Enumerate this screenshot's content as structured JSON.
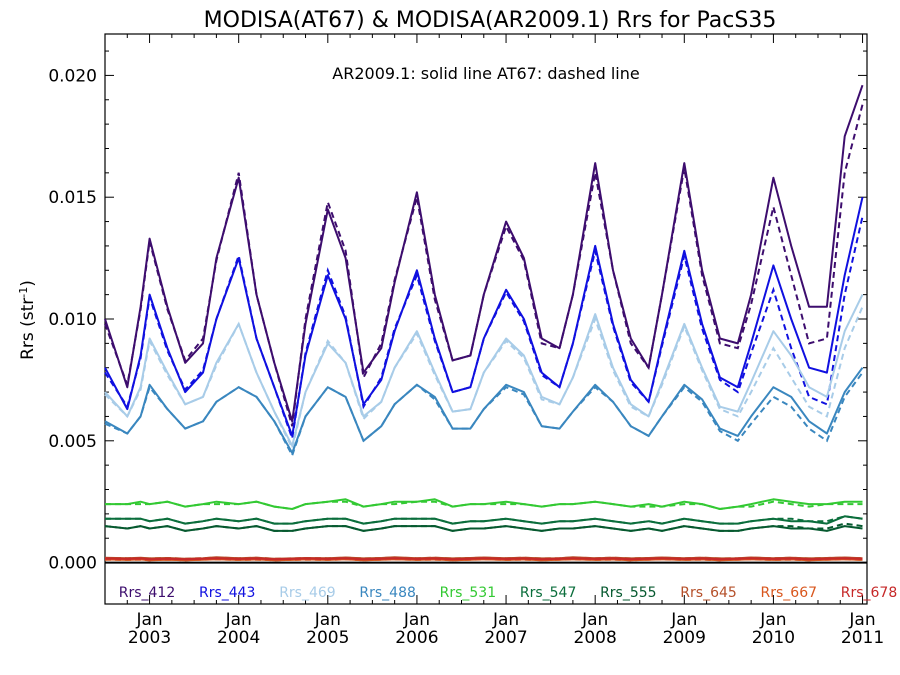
{
  "chart_data": {
    "type": "line",
    "title": "MODISA(AT67) & MODISA(AR2009.1)  Rrs for PacS35",
    "ylabel": "Rrs (str",
    "ylabel_sup": "-1",
    "ylabel_close": ")",
    "annotation": "AR2009.1: solid line   AT67: dashed line",
    "ylim": [
      -0.0017,
      0.0217
    ],
    "xlim": [
      2002.5,
      2011.05
    ],
    "yticks": [
      {
        "value": 0.0,
        "label": "0.000"
      },
      {
        "value": 0.005,
        "label": "0.005"
      },
      {
        "value": 0.01,
        "label": "0.010"
      },
      {
        "value": 0.015,
        "label": "0.015"
      },
      {
        "value": 0.02,
        "label": "0.020"
      }
    ],
    "xticks": [
      {
        "value": 2003,
        "month": "Jan",
        "year": "2003"
      },
      {
        "value": 2004,
        "month": "Jan",
        "year": "2004"
      },
      {
        "value": 2005,
        "month": "Jan",
        "year": "2005"
      },
      {
        "value": 2006,
        "month": "Jan",
        "year": "2006"
      },
      {
        "value": 2007,
        "month": "Jan",
        "year": "2007"
      },
      {
        "value": 2008,
        "month": "Jan",
        "year": "2008"
      },
      {
        "value": 2009,
        "month": "Jan",
        "year": "2009"
      },
      {
        "value": 2010,
        "month": "Jan",
        "year": "2010"
      },
      {
        "value": 2011,
        "month": "Jan",
        "year": "2011"
      }
    ],
    "line_styles": {
      "AR2009.1": "solid",
      "AT67": "dashed"
    },
    "legend_position": "bottom",
    "x": [
      2002.5,
      2002.75,
      2002.9,
      2003.0,
      2003.2,
      2003.4,
      2003.6,
      2003.75,
      2004.0,
      2004.2,
      2004.4,
      2004.6,
      2004.75,
      2005.0,
      2005.2,
      2005.4,
      2005.6,
      2005.75,
      2006.0,
      2006.2,
      2006.4,
      2006.6,
      2006.75,
      2007.0,
      2007.2,
      2007.4,
      2007.6,
      2007.75,
      2008.0,
      2008.2,
      2008.4,
      2008.6,
      2008.75,
      2009.0,
      2009.2,
      2009.4,
      2009.6,
      2009.75,
      2010.0,
      2010.2,
      2010.4,
      2010.6,
      2010.8,
      2011.0
    ],
    "series": [
      {
        "name": "Rrs_412",
        "color": "#3d0d6e",
        "solid": [
          0.01,
          0.0072,
          0.0105,
          0.0133,
          0.0105,
          0.0082,
          0.009,
          0.0125,
          0.0158,
          0.011,
          0.0082,
          0.0058,
          0.0098,
          0.0145,
          0.0125,
          0.0078,
          0.0088,
          0.0115,
          0.0152,
          0.011,
          0.0083,
          0.0085,
          0.011,
          0.014,
          0.0125,
          0.0092,
          0.0088,
          0.011,
          0.0164,
          0.012,
          0.0092,
          0.008,
          0.011,
          0.0164,
          0.012,
          0.0092,
          0.009,
          0.011,
          0.0158,
          0.013,
          0.0105,
          0.0105,
          0.0175,
          0.0196
        ],
        "dashed": [
          0.0098,
          0.0073,
          0.0104,
          0.0132,
          0.0104,
          0.0083,
          0.0092,
          0.0124,
          0.016,
          0.011,
          0.0082,
          0.0056,
          0.01,
          0.0148,
          0.0128,
          0.0076,
          0.009,
          0.0116,
          0.015,
          0.0108,
          0.0083,
          0.0085,
          0.011,
          0.0138,
          0.0124,
          0.009,
          0.0088,
          0.011,
          0.016,
          0.012,
          0.009,
          0.008,
          0.011,
          0.0162,
          0.0118,
          0.009,
          0.0088,
          0.0106,
          0.0146,
          0.0118,
          0.009,
          0.0092,
          0.016,
          0.0188
        ]
      },
      {
        "name": "Rrs_443",
        "color": "#1010e0",
        "solid": [
          0.008,
          0.0063,
          0.0085,
          0.011,
          0.0088,
          0.007,
          0.0078,
          0.01,
          0.0125,
          0.0092,
          0.0072,
          0.0052,
          0.0085,
          0.0118,
          0.01,
          0.0065,
          0.0075,
          0.0095,
          0.012,
          0.0092,
          0.007,
          0.0072,
          0.0092,
          0.0112,
          0.01,
          0.0078,
          0.0072,
          0.009,
          0.013,
          0.0098,
          0.0075,
          0.0066,
          0.009,
          0.0128,
          0.0098,
          0.0076,
          0.0072,
          0.009,
          0.0122,
          0.01,
          0.008,
          0.0078,
          0.0118,
          0.015
        ],
        "dashed": [
          0.0078,
          0.0064,
          0.0084,
          0.0109,
          0.0087,
          0.0071,
          0.0079,
          0.01,
          0.0126,
          0.0092,
          0.0072,
          0.0051,
          0.0086,
          0.012,
          0.0101,
          0.0064,
          0.0076,
          0.0096,
          0.0118,
          0.0091,
          0.007,
          0.0072,
          0.0092,
          0.0111,
          0.0099,
          0.0077,
          0.0072,
          0.009,
          0.0128,
          0.0097,
          0.0074,
          0.0066,
          0.0089,
          0.0126,
          0.0096,
          0.0075,
          0.007,
          0.0086,
          0.0112,
          0.0088,
          0.0068,
          0.0065,
          0.011,
          0.0142
        ]
      },
      {
        "name": "Rrs_469",
        "color": "#a8cce8",
        "solid": [
          0.007,
          0.006,
          0.0072,
          0.0092,
          0.0078,
          0.0065,
          0.0068,
          0.0082,
          0.0098,
          0.0078,
          0.0062,
          0.0048,
          0.007,
          0.009,
          0.0082,
          0.006,
          0.0066,
          0.008,
          0.0095,
          0.0078,
          0.0062,
          0.0063,
          0.0078,
          0.0092,
          0.0085,
          0.0068,
          0.0065,
          0.0076,
          0.0102,
          0.008,
          0.0065,
          0.006,
          0.0074,
          0.0098,
          0.008,
          0.0064,
          0.0062,
          0.0074,
          0.0095,
          0.0085,
          0.0072,
          0.0068,
          0.0095,
          0.011
        ],
        "dashed": [
          0.0069,
          0.006,
          0.0071,
          0.0091,
          0.0077,
          0.0065,
          0.0068,
          0.0081,
          0.0098,
          0.0078,
          0.0062,
          0.0047,
          0.007,
          0.0091,
          0.0082,
          0.0059,
          0.0066,
          0.008,
          0.0094,
          0.0077,
          0.0062,
          0.0063,
          0.0078,
          0.0091,
          0.0084,
          0.0067,
          0.0065,
          0.0076,
          0.01,
          0.0079,
          0.0064,
          0.006,
          0.0073,
          0.0097,
          0.0079,
          0.0063,
          0.006,
          0.007,
          0.0088,
          0.0076,
          0.0064,
          0.006,
          0.0088,
          0.0105
        ]
      },
      {
        "name": "Rrs_488",
        "color": "#3a87bf",
        "solid": [
          0.0058,
          0.0053,
          0.006,
          0.0073,
          0.0063,
          0.0055,
          0.0058,
          0.0066,
          0.0072,
          0.0068,
          0.0058,
          0.0045,
          0.006,
          0.0072,
          0.0068,
          0.005,
          0.0056,
          0.0065,
          0.0073,
          0.0068,
          0.0055,
          0.0055,
          0.0063,
          0.0073,
          0.007,
          0.0056,
          0.0055,
          0.0062,
          0.0073,
          0.0066,
          0.0056,
          0.0052,
          0.006,
          0.0073,
          0.0067,
          0.0055,
          0.0052,
          0.006,
          0.0072,
          0.0068,
          0.0058,
          0.0053,
          0.007,
          0.008
        ],
        "dashed": [
          0.0057,
          0.0053,
          0.006,
          0.0072,
          0.0063,
          0.0055,
          0.0058,
          0.0066,
          0.0072,
          0.0068,
          0.0058,
          0.0044,
          0.006,
          0.0072,
          0.0068,
          0.005,
          0.0056,
          0.0065,
          0.0073,
          0.0067,
          0.0055,
          0.0055,
          0.0063,
          0.0072,
          0.0069,
          0.0056,
          0.0055,
          0.0062,
          0.0072,
          0.0066,
          0.0056,
          0.0052,
          0.006,
          0.0072,
          0.0066,
          0.0054,
          0.005,
          0.0057,
          0.0068,
          0.0064,
          0.0055,
          0.005,
          0.0068,
          0.0078
        ]
      },
      {
        "name": "Rrs_531",
        "color": "#33c933",
        "solid": [
          0.0024,
          0.0024,
          0.0025,
          0.0024,
          0.0025,
          0.0023,
          0.0024,
          0.0025,
          0.0024,
          0.0025,
          0.0023,
          0.0022,
          0.0024,
          0.0025,
          0.0026,
          0.0023,
          0.0024,
          0.0025,
          0.0025,
          0.0026,
          0.0023,
          0.0024,
          0.0024,
          0.0025,
          0.0024,
          0.0023,
          0.0024,
          0.0024,
          0.0025,
          0.0024,
          0.0023,
          0.0024,
          0.0023,
          0.0025,
          0.0024,
          0.0022,
          0.0023,
          0.0024,
          0.0026,
          0.0025,
          0.0024,
          0.0024,
          0.0025,
          0.0025
        ],
        "dashed": [
          0.0024,
          0.0024,
          0.0024,
          0.0024,
          0.0025,
          0.0023,
          0.0024,
          0.0024,
          0.0024,
          0.0025,
          0.0023,
          0.0022,
          0.0024,
          0.0025,
          0.0025,
          0.0023,
          0.0024,
          0.0024,
          0.0025,
          0.0025,
          0.0023,
          0.0024,
          0.0024,
          0.0024,
          0.0024,
          0.0023,
          0.0024,
          0.0024,
          0.0025,
          0.0024,
          0.0023,
          0.0023,
          0.0023,
          0.0024,
          0.0024,
          0.0022,
          0.0023,
          0.0023,
          0.0025,
          0.0024,
          0.0023,
          0.0024,
          0.0024,
          0.0024
        ]
      },
      {
        "name": "Rrs_547",
        "color": "#0b6e3c",
        "solid": [
          0.0018,
          0.0018,
          0.0018,
          0.0017,
          0.0018,
          0.0016,
          0.0017,
          0.0018,
          0.0017,
          0.0018,
          0.0016,
          0.0016,
          0.0017,
          0.0018,
          0.0018,
          0.0016,
          0.0017,
          0.0018,
          0.0018,
          0.0018,
          0.0016,
          0.0017,
          0.0017,
          0.0018,
          0.0017,
          0.0016,
          0.0017,
          0.0017,
          0.0018,
          0.0017,
          0.0016,
          0.0017,
          0.0016,
          0.0018,
          0.0017,
          0.0016,
          0.0016,
          0.0017,
          0.0018,
          0.0017,
          0.0017,
          0.0016,
          0.0019,
          0.0018
        ],
        "dashed": [
          0.0018,
          0.0018,
          0.0018,
          0.0017,
          0.0018,
          0.0016,
          0.0017,
          0.0018,
          0.0017,
          0.0018,
          0.0016,
          0.0016,
          0.0017,
          0.0018,
          0.0018,
          0.0016,
          0.0017,
          0.0018,
          0.0018,
          0.0018,
          0.0016,
          0.0017,
          0.0017,
          0.0018,
          0.0017,
          0.0016,
          0.0017,
          0.0017,
          0.0018,
          0.0017,
          0.0016,
          0.0017,
          0.0016,
          0.0018,
          0.0017,
          0.0016,
          0.0016,
          0.0017,
          0.0018,
          0.0018,
          0.0017,
          0.0017,
          0.0019,
          0.0018
        ]
      },
      {
        "name": "Rrs_555",
        "color": "#06592f",
        "solid": [
          0.0015,
          0.0014,
          0.0015,
          0.0014,
          0.0015,
          0.0013,
          0.0014,
          0.0015,
          0.0014,
          0.0015,
          0.0013,
          0.0013,
          0.0014,
          0.0015,
          0.0015,
          0.0013,
          0.0014,
          0.0015,
          0.0015,
          0.0015,
          0.0013,
          0.0014,
          0.0014,
          0.0015,
          0.0014,
          0.0013,
          0.0014,
          0.0014,
          0.0015,
          0.0014,
          0.0013,
          0.0014,
          0.0013,
          0.0015,
          0.0014,
          0.0013,
          0.0013,
          0.0014,
          0.0015,
          0.0014,
          0.0014,
          0.0013,
          0.0015,
          0.0014
        ],
        "dashed": [
          0.0015,
          0.0014,
          0.0015,
          0.0014,
          0.0015,
          0.0013,
          0.0014,
          0.0015,
          0.0014,
          0.0015,
          0.0013,
          0.0013,
          0.0014,
          0.0015,
          0.0015,
          0.0013,
          0.0014,
          0.0015,
          0.0015,
          0.0015,
          0.0013,
          0.0014,
          0.0014,
          0.0015,
          0.0014,
          0.0013,
          0.0014,
          0.0014,
          0.0015,
          0.0014,
          0.0013,
          0.0014,
          0.0013,
          0.0015,
          0.0014,
          0.0013,
          0.0013,
          0.0014,
          0.0015,
          0.0015,
          0.0014,
          0.0014,
          0.0016,
          0.0015
        ]
      },
      {
        "name": "Rrs_645",
        "color": "#b5502a",
        "solid": [
          0.0002,
          0.00018,
          0.0002,
          0.00017,
          0.00019,
          0.00016,
          0.00018,
          0.00022,
          0.00018,
          0.0002,
          0.00016,
          0.00017,
          0.00019,
          0.00018,
          0.00021,
          0.00017,
          0.00019,
          0.00022,
          0.00018,
          0.0002,
          0.00017,
          0.00019,
          0.00021,
          0.00018,
          0.0002,
          0.00017,
          0.00018,
          0.00022,
          0.00018,
          0.0002,
          0.00017,
          0.00019,
          0.00021,
          0.00018,
          0.0002,
          0.00017,
          0.00018,
          0.00021,
          0.00018,
          0.0002,
          0.00017,
          0.00019,
          0.00021,
          0.00018
        ],
        "dashed": [
          0.00019,
          0.00018,
          0.00019,
          0.00017,
          0.00019,
          0.00016,
          0.00018,
          0.00021,
          0.00018,
          0.0002,
          0.00016,
          0.00017,
          0.00019,
          0.00018,
          0.0002,
          0.00017,
          0.00019,
          0.00021,
          0.00018,
          0.0002,
          0.00017,
          0.00019,
          0.0002,
          0.00018,
          0.0002,
          0.00017,
          0.00018,
          0.00021,
          0.00018,
          0.0002,
          0.00017,
          0.00019,
          0.0002,
          0.00018,
          0.0002,
          0.00017,
          0.00018,
          0.0002,
          0.00018,
          0.0002,
          0.00017,
          0.00019,
          0.0002,
          0.00018
        ]
      },
      {
        "name": "Rrs_667",
        "color": "#d9571e",
        "solid": [
          0.00013,
          0.00011,
          0.00013,
          0.0001,
          0.00012,
          0.0001,
          0.00012,
          0.00014,
          0.00011,
          0.00013,
          0.0001,
          0.00011,
          0.00013,
          0.00011,
          0.00014,
          0.0001,
          0.00012,
          0.00014,
          0.00011,
          0.00013,
          0.0001,
          0.00012,
          0.00014,
          0.00011,
          0.00013,
          0.0001,
          0.00012,
          0.00014,
          0.00011,
          0.00013,
          0.0001,
          0.00012,
          0.00014,
          0.00011,
          0.00013,
          0.0001,
          0.00012,
          0.00014,
          0.00011,
          0.00013,
          0.0001,
          0.00012,
          0.00014,
          0.00011
        ],
        "dashed": [
          0.00012,
          0.00011,
          0.00012,
          0.0001,
          0.00012,
          0.0001,
          0.00012,
          0.00013,
          0.00011,
          0.00012,
          0.0001,
          0.00011,
          0.00012,
          0.00011,
          0.00013,
          0.0001,
          0.00012,
          0.00013,
          0.00011,
          0.00012,
          0.0001,
          0.00012,
          0.00013,
          0.00011,
          0.00012,
          0.0001,
          0.00012,
          0.00013,
          0.00011,
          0.00012,
          0.0001,
          0.00012,
          0.00013,
          0.00011,
          0.00012,
          0.0001,
          0.00012,
          0.00013,
          0.00011,
          0.00012,
          0.0001,
          0.00012,
          0.00013,
          0.00011
        ]
      },
      {
        "name": "Rrs_678",
        "color": "#c62828",
        "solid": [
          0.00017,
          0.00015,
          0.00017,
          0.00014,
          0.00016,
          0.00014,
          0.00016,
          0.00018,
          0.00015,
          0.00017,
          0.00014,
          0.00015,
          0.00017,
          0.00015,
          0.00018,
          0.00014,
          0.00016,
          0.00018,
          0.00015,
          0.00017,
          0.00014,
          0.00016,
          0.00018,
          0.00015,
          0.00017,
          0.00014,
          0.00016,
          0.00018,
          0.00015,
          0.00017,
          0.00014,
          0.00016,
          0.00018,
          0.00015,
          0.00017,
          0.00014,
          0.00016,
          0.00018,
          0.00015,
          0.00017,
          0.00014,
          0.00016,
          0.00018,
          0.00015
        ],
        "dashed": [
          0.00016,
          0.00015,
          0.00016,
          0.00014,
          0.00016,
          0.00014,
          0.00016,
          0.00017,
          0.00015,
          0.00016,
          0.00014,
          0.00015,
          0.00016,
          0.00015,
          0.00017,
          0.00014,
          0.00016,
          0.00017,
          0.00015,
          0.00016,
          0.00014,
          0.00016,
          0.00017,
          0.00015,
          0.00016,
          0.00014,
          0.00016,
          0.00017,
          0.00015,
          0.00016,
          0.00014,
          0.00016,
          0.00017,
          0.00015,
          0.00016,
          0.00014,
          0.00016,
          0.00017,
          0.00015,
          0.00016,
          0.00014,
          0.00016,
          0.00017,
          0.00015
        ]
      }
    ]
  }
}
